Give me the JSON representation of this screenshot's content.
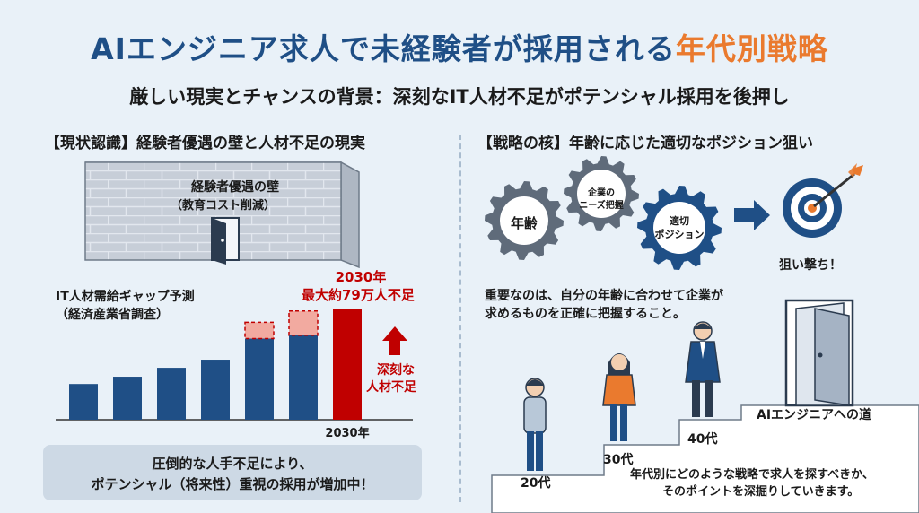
{
  "title": {
    "main": "AIエンジニア求人で未経験者が採用される",
    "highlight": "年代別戦略"
  },
  "subtitle": "厳しい現実とチャンスの背景：深刻なIT人材不足がポテンシャル採用を後押し",
  "left": {
    "heading": "【現状認識】経験者優遇の壁と人材不足の現実",
    "wall_title": "経験者優遇の壁",
    "wall_sub": "（教育コスト削減）",
    "chart_title_1": "IT人材需給ギャップ予測",
    "chart_title_2": "（経済産業省調査）",
    "annotation_year": "2030年",
    "annotation_value": "最大約79万人不足",
    "arrow_label_1": "深刻な",
    "arrow_label_2": "人材不足",
    "callout_1": "圧倒的な人手不足により、",
    "callout_2": "ポテンシャル（将来性）重視の採用が増加中！"
  },
  "chart_data": {
    "type": "bar",
    "categories": [
      "",
      "",
      "",
      "",
      "",
      "",
      "2030年"
    ],
    "values": [
      44,
      53,
      64,
      74,
      100,
      104,
      136
    ],
    "gap": [
      0,
      0,
      0,
      0,
      20,
      30,
      0
    ],
    "highlight_index": 6,
    "colors": {
      "bar": "#1f4f86",
      "gap": "#f2aaa0",
      "highlight": "#c00000"
    }
  },
  "right": {
    "heading": "【戦略の核】年齢に応じた適切なポジション狙い",
    "gear_age": "年齢",
    "gear_needs_1": "企業の",
    "gear_needs_2": "ニーズ把握",
    "gear_pos_1": "適切",
    "gear_pos_2": "ポジション",
    "target_label": "狙い撃ち！",
    "insight_1": "重要なのは、自分の年齢に合わせて企業が",
    "insight_2": "求めるものを正確に把握すること。",
    "step_20": "20代",
    "step_30": "30代",
    "step_40": "40代",
    "road_label": "AIエンジニアへの道",
    "closing_1": "年代別にどのような戦略で求人を探すべきか、",
    "closing_2": "そのポイントを深掘りしていきます。"
  },
  "watermark_icon": "sparkle-icon",
  "watermark": "✦"
}
